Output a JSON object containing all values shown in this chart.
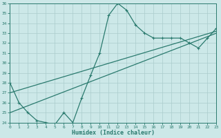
{
  "xlabel": "Humidex (Indice chaleur)",
  "x_data": [
    0,
    1,
    2,
    3,
    4,
    5,
    6,
    7,
    8,
    9,
    10,
    11,
    12,
    13,
    14,
    15,
    16,
    17,
    18,
    19,
    20,
    21,
    22,
    23
  ],
  "y_data": [
    28,
    26,
    25,
    24.2,
    24,
    23.8,
    25,
    24,
    26.5,
    28.8,
    31,
    34.8,
    36,
    35.3,
    33.8,
    33,
    32.5,
    32.5,
    32.5,
    32.5,
    32,
    31.5,
    32.5,
    33.5
  ],
  "line1_x": [
    0,
    23
  ],
  "line1_y": [
    27.0,
    33.2
  ],
  "line2_x": [
    0,
    23
  ],
  "line2_y": [
    25.0,
    33.0
  ],
  "line_color": "#2a7a6e",
  "bg_color": "#cce8e8",
  "grid_color": "#aacccc",
  "ylim": [
    24,
    36
  ],
  "xlim": [
    0,
    23
  ],
  "yticks": [
    24,
    25,
    26,
    27,
    28,
    29,
    30,
    31,
    32,
    33,
    34,
    35,
    36
  ],
  "xticks": [
    0,
    1,
    2,
    3,
    4,
    5,
    6,
    7,
    8,
    9,
    10,
    11,
    12,
    13,
    14,
    15,
    16,
    17,
    18,
    19,
    20,
    21,
    22,
    23
  ]
}
